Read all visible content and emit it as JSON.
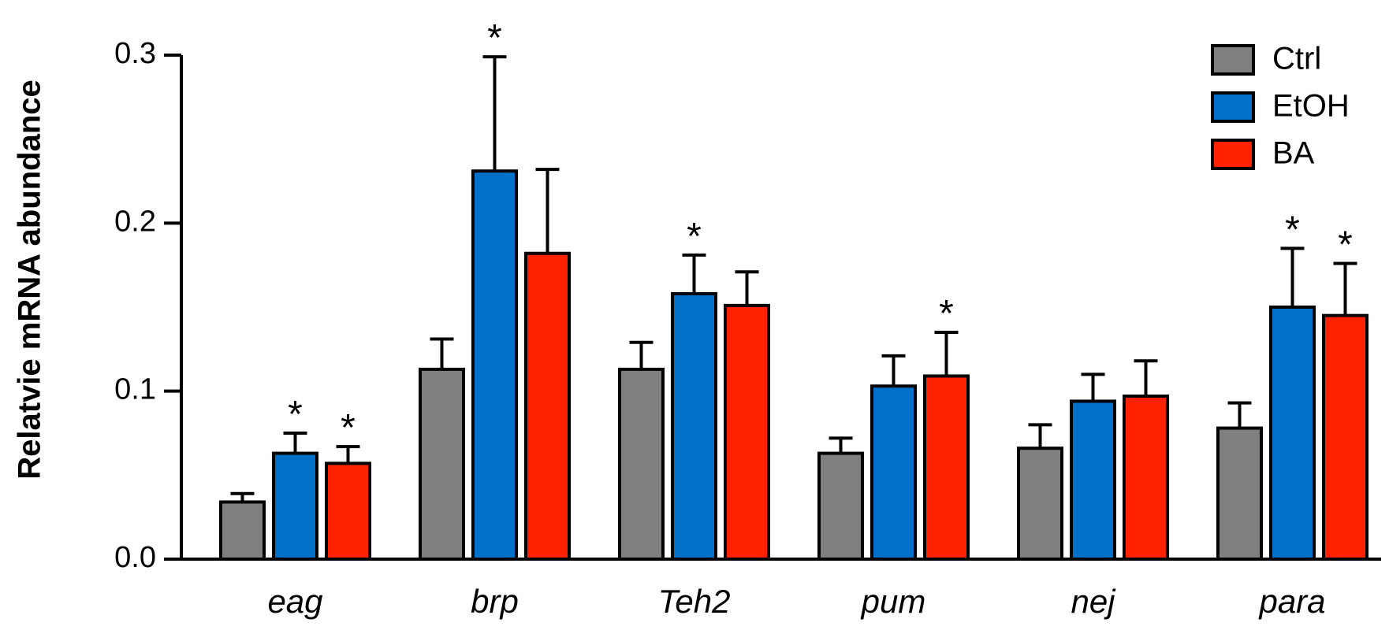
{
  "chart_data": {
    "type": "bar",
    "title": "",
    "xlabel": "",
    "ylabel": "Relatvie mRNA abundance",
    "ylim": [
      0,
      0.3
    ],
    "yticks": [
      "0.0",
      "0.1",
      "0.2",
      "0.3"
    ],
    "ytick_values": [
      0,
      0.1,
      0.2,
      0.3
    ],
    "categories": [
      "eag",
      "brp",
      "Teh2",
      "pum",
      "nej",
      "para"
    ],
    "legend_position": "top-right",
    "grid": false,
    "significance_marker": "*",
    "series": [
      {
        "name": "Ctrl",
        "color": "#7f7f7f",
        "values": [
          0.034,
          0.113,
          0.113,
          0.063,
          0.066,
          0.078
        ],
        "errors": [
          0.005,
          0.018,
          0.016,
          0.009,
          0.014,
          0.015
        ],
        "significant": [
          false,
          false,
          false,
          false,
          false,
          false
        ]
      },
      {
        "name": "EtOH",
        "color": "#0070c8",
        "values": [
          0.063,
          0.231,
          0.158,
          0.103,
          0.094,
          0.15
        ],
        "errors": [
          0.012,
          0.068,
          0.023,
          0.018,
          0.016,
          0.035
        ],
        "significant": [
          true,
          true,
          true,
          false,
          false,
          true
        ]
      },
      {
        "name": "BA",
        "color": "#ff2200",
        "values": [
          0.057,
          0.182,
          0.151,
          0.109,
          0.097,
          0.145
        ],
        "errors": [
          0.01,
          0.05,
          0.02,
          0.026,
          0.021,
          0.031
        ],
        "significant": [
          true,
          false,
          false,
          true,
          false,
          true
        ]
      }
    ]
  }
}
